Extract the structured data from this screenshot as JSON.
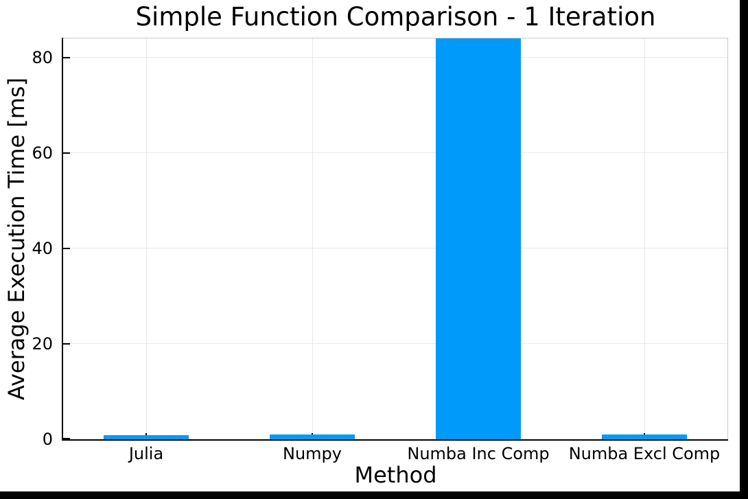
{
  "chart_data": {
    "type": "bar",
    "title": "Simple Function Comparison - 1 Iteration",
    "xlabel": "Method",
    "ylabel": "Average Execution Time [ms]",
    "categories": [
      "Julia",
      "Numpy",
      "Numba Inc Comp",
      "Numba Excl Comp"
    ],
    "values": [
      0.9,
      0.95,
      84.2,
      1.0
    ],
    "clipped": [
      false,
      false,
      true,
      false
    ],
    "note": "Numba Inc Comp bar is clipped at the top of the plot; its true value exceeds the visible axis range",
    "yticks": [
      0,
      20,
      40,
      60,
      80
    ],
    "ytick_labels": [
      "0",
      "20",
      "40",
      "60",
      "80"
    ],
    "ylim": [
      0,
      84
    ],
    "grid": true,
    "legend": "none",
    "bar_color": "#009AFA",
    "plot_background": "#FFFFFF",
    "outer_background": "#000000",
    "gridline_color": "#E8E8E8",
    "frame_color": "#C9C9C9",
    "axis_color": "#000000"
  }
}
